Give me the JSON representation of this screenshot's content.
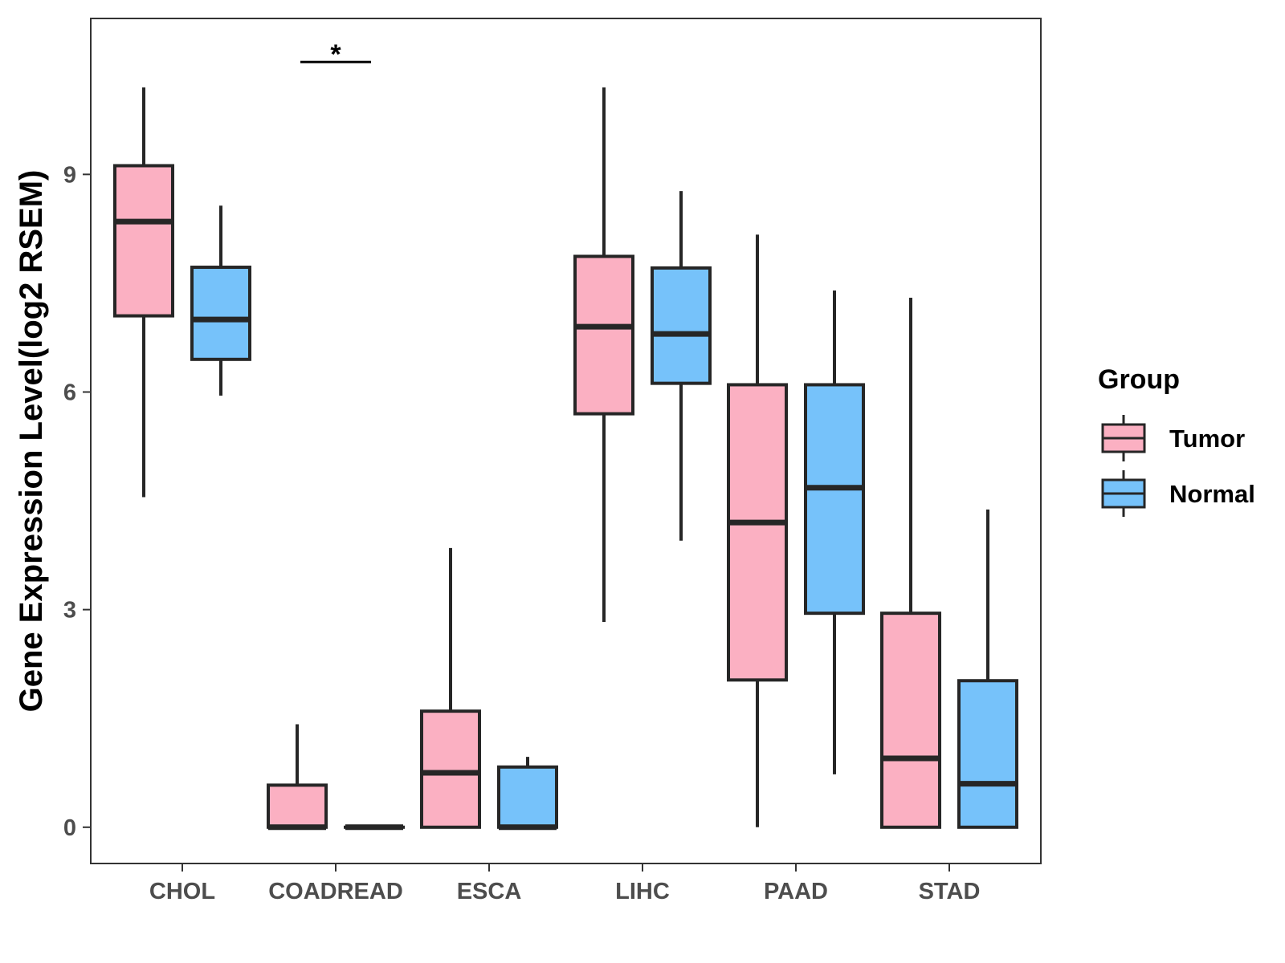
{
  "chart_data": {
    "type": "boxplot",
    "title": "",
    "xlabel": "",
    "ylabel": "Gene Expression Level(log2 RSEM)",
    "ylim": [
      -0.5,
      11.15
    ],
    "yticks": [
      0,
      3,
      6,
      9
    ],
    "ytick_labels": [
      "0",
      "3",
      "6",
      "9"
    ],
    "categories": [
      "CHOL",
      "COADREAD",
      "ESCA",
      "LIHC",
      "PAAD",
      "STAD"
    ],
    "legend": {
      "title": "Group",
      "position": "right",
      "entries": [
        {
          "name": "Tumor",
          "color": "#FBB0C2"
        },
        {
          "name": "Normal",
          "color": "#76C2FA"
        }
      ]
    },
    "series": [
      {
        "name": "Tumor",
        "color": "#FBB0C2",
        "boxes": [
          {
            "category": "CHOL",
            "whisker_low": 4.55,
            "q1": 7.05,
            "median": 8.35,
            "q3": 9.12,
            "whisker_high": 10.2
          },
          {
            "category": "COADREAD",
            "whisker_low": 0.0,
            "q1": 0.0,
            "median": 0.0,
            "q3": 0.58,
            "whisker_high": 1.42
          },
          {
            "category": "ESCA",
            "whisker_low": 0.0,
            "q1": 0.0,
            "median": 0.75,
            "q3": 1.6,
            "whisker_high": 3.85
          },
          {
            "category": "LIHC",
            "whisker_low": 2.83,
            "q1": 5.7,
            "median": 6.9,
            "q3": 7.87,
            "whisker_high": 10.2
          },
          {
            "category": "PAAD",
            "whisker_low": 0.0,
            "q1": 2.03,
            "median": 4.2,
            "q3": 6.1,
            "whisker_high": 8.17
          },
          {
            "category": "STAD",
            "whisker_low": 0.0,
            "q1": 0.0,
            "median": 0.95,
            "q3": 2.95,
            "whisker_high": 7.3
          }
        ]
      },
      {
        "name": "Normal",
        "color": "#76C2FA",
        "boxes": [
          {
            "category": "CHOL",
            "whisker_low": 5.95,
            "q1": 6.45,
            "median": 7.0,
            "q3": 7.72,
            "whisker_high": 8.57
          },
          {
            "category": "COADREAD",
            "whisker_low": 0.0,
            "q1": 0.0,
            "median": 0.0,
            "q3": 0.0,
            "whisker_high": 0.0
          },
          {
            "category": "ESCA",
            "whisker_low": 0.0,
            "q1": 0.0,
            "median": 0.0,
            "q3": 0.83,
            "whisker_high": 0.97
          },
          {
            "category": "LIHC",
            "whisker_low": 3.95,
            "q1": 6.12,
            "median": 6.8,
            "q3": 7.71,
            "whisker_high": 8.77
          },
          {
            "category": "PAAD",
            "whisker_low": 0.73,
            "q1": 2.95,
            "median": 4.68,
            "q3": 6.1,
            "whisker_high": 7.4
          },
          {
            "category": "STAD",
            "whisker_low": 0.0,
            "q1": 0.0,
            "median": 0.6,
            "q3": 2.02,
            "whisker_high": 4.38
          }
        ]
      }
    ],
    "annotations": [
      {
        "category": "COADREAD",
        "text": "*",
        "y": 10.55
      }
    ]
  }
}
